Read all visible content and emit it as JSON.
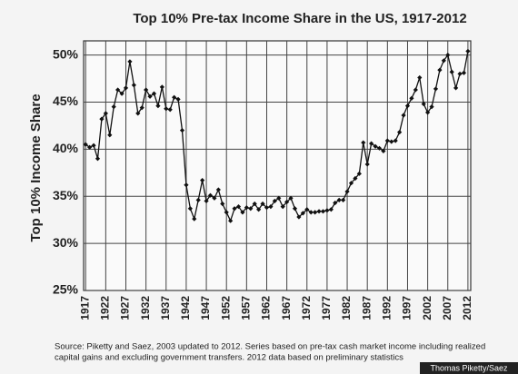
{
  "chart_data": {
    "type": "line",
    "title": "Top 10% Pre-tax Income Share in the US, 1917-2012",
    "ylabel": "Top 10% Income Share",
    "source": [
      "Source: Piketty and Saez, 2003 updated to 2012. Series based on pre-tax cash market income including realized",
      "capital gains and excluding government transfers. 2012 data based on preliminary statistics"
    ],
    "credit": "Thomas Piketty/Saez",
    "x": [
      1917,
      1918,
      1919,
      1920,
      1921,
      1922,
      1923,
      1924,
      1925,
      1926,
      1927,
      1928,
      1929,
      1930,
      1931,
      1932,
      1933,
      1934,
      1935,
      1936,
      1937,
      1938,
      1939,
      1940,
      1941,
      1942,
      1943,
      1944,
      1945,
      1946,
      1947,
      1948,
      1949,
      1950,
      1951,
      1952,
      1953,
      1954,
      1955,
      1956,
      1957,
      1958,
      1959,
      1960,
      1961,
      1962,
      1963,
      1964,
      1965,
      1966,
      1967,
      1968,
      1969,
      1970,
      1971,
      1972,
      1973,
      1974,
      1975,
      1976,
      1977,
      1978,
      1979,
      1980,
      1981,
      1982,
      1983,
      1984,
      1985,
      1986,
      1987,
      1988,
      1989,
      1990,
      1991,
      1992,
      1993,
      1994,
      1995,
      1996,
      1997,
      1998,
      1999,
      2000,
      2001,
      2002,
      2003,
      2004,
      2005,
      2006,
      2007,
      2008,
      2009,
      2010,
      2011,
      2012
    ],
    "series": [
      {
        "name": "Top 10% Income Share",
        "color": "#111111",
        "values": [
          40.5,
          40.2,
          40.4,
          39.0,
          43.2,
          43.8,
          41.5,
          44.5,
          46.3,
          45.9,
          46.5,
          49.3,
          46.8,
          43.8,
          44.4,
          46.3,
          45.6,
          45.9,
          44.6,
          46.6,
          44.3,
          44.2,
          45.5,
          45.3,
          42.0,
          36.2,
          33.7,
          32.6,
          34.6,
          36.7,
          34.5,
          35.1,
          34.8,
          35.7,
          34.2,
          33.3,
          32.4,
          33.7,
          33.9,
          33.3,
          33.8,
          33.7,
          34.2,
          33.6,
          34.2,
          33.8,
          33.9,
          34.5,
          34.8,
          33.9,
          34.4,
          34.8,
          33.7,
          32.8,
          33.2,
          33.6,
          33.3,
          33.3,
          33.4,
          33.4,
          33.5,
          33.6,
          34.3,
          34.6,
          34.6,
          35.5,
          36.4,
          36.9,
          37.4,
          40.7,
          38.4,
          40.6,
          40.3,
          40.1,
          39.8,
          40.9,
          40.8,
          40.9,
          41.8,
          43.6,
          44.6,
          45.4,
          46.3,
          47.6,
          44.8,
          43.9,
          44.5,
          46.4,
          48.4,
          49.4,
          50.0,
          48.2,
          46.5,
          48.0,
          48.1,
          50.4
        ]
      }
    ],
    "xlim": [
      1916.5,
      2012.7
    ],
    "xticks": [
      1917,
      1922,
      1927,
      1932,
      1937,
      1942,
      1947,
      1952,
      1957,
      1962,
      1967,
      1972,
      1977,
      1982,
      1987,
      1992,
      1997,
      2002,
      2007,
      2012
    ],
    "ylim": [
      25,
      51.5
    ],
    "yticks": [
      {
        "value": 25,
        "label": "25%"
      },
      {
        "value": 30,
        "label": "30%"
      },
      {
        "value": 35,
        "label": "35%"
      },
      {
        "value": 40,
        "label": "40%"
      },
      {
        "value": 45,
        "label": "45%"
      },
      {
        "value": 50,
        "label": "50%"
      }
    ],
    "grid": true
  }
}
